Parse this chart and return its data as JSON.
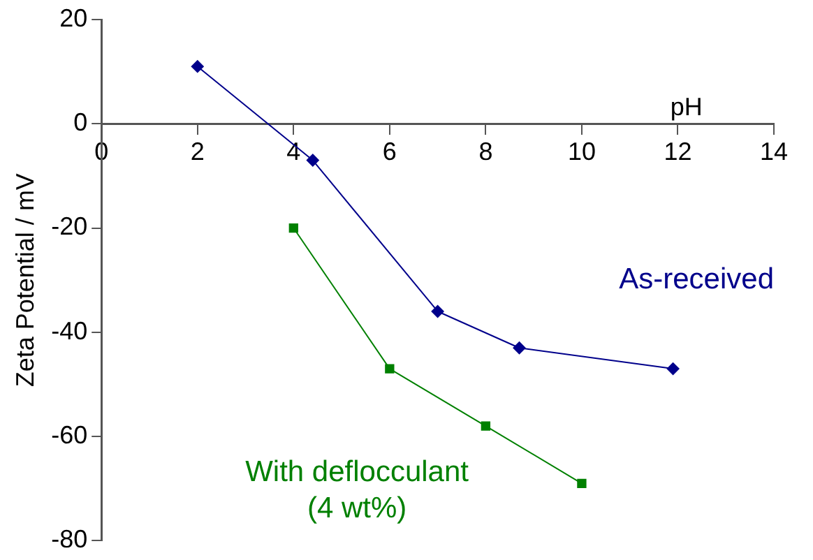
{
  "chart_data": {
    "type": "line",
    "xlabel": "pH",
    "ylabel": "Zeta Potential / mV",
    "xlim": [
      0,
      14
    ],
    "xticks": [
      0,
      2,
      4,
      6,
      8,
      10,
      12,
      14
    ],
    "ylim": [
      -80,
      20
    ],
    "yticks": [
      -80,
      -60,
      -40,
      -20,
      0,
      20
    ],
    "grid": false,
    "legend": false,
    "series": [
      {
        "name": "As-received",
        "color": "#00008b",
        "marker": "diamond",
        "x": [
          2,
          4.4,
          7,
          8.7,
          11.9
        ],
        "values": [
          11,
          -7,
          -36,
          -43,
          -47
        ]
      },
      {
        "name": "With deflocculant\n(4 wt%)",
        "color": "#008000",
        "marker": "square",
        "x": [
          4,
          6,
          8,
          10
        ],
        "values": [
          -20,
          -47,
          -58,
          -69
        ]
      }
    ]
  }
}
